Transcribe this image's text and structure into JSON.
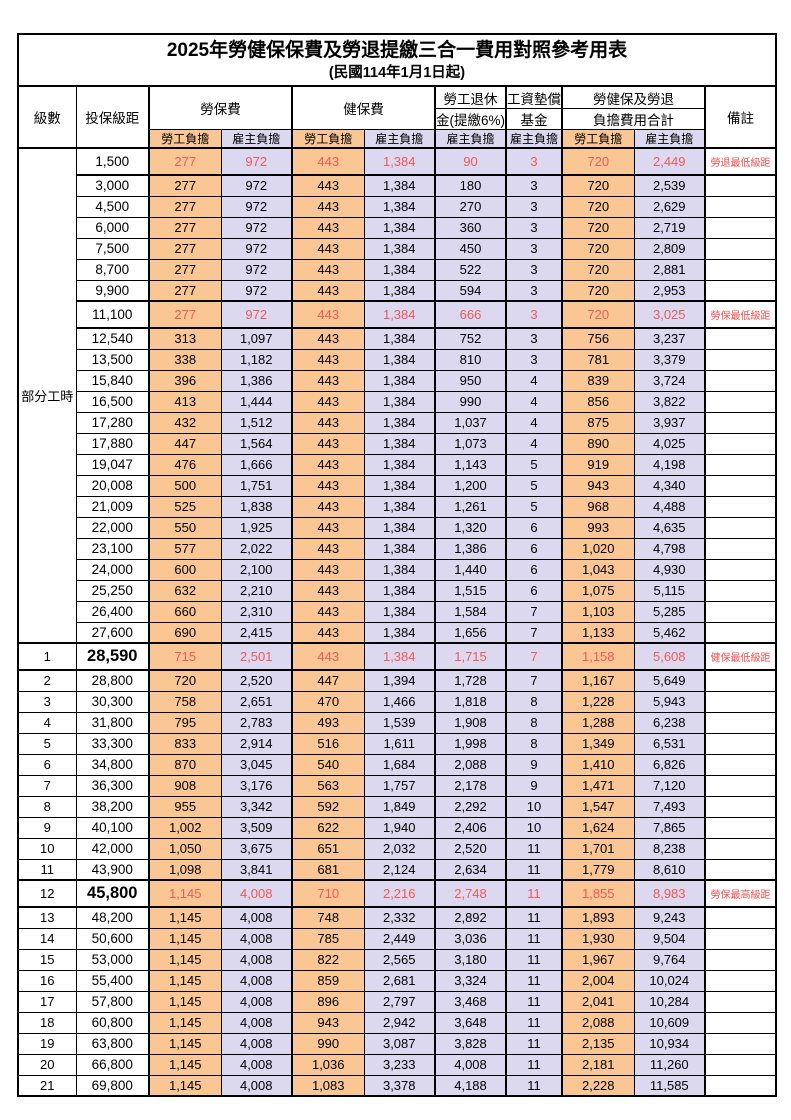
{
  "title": "2025年勞健保保費及勞退提繳三合一費用對照參考用表",
  "subtitle": "(民國114年1月1日起)",
  "header": {
    "level": "級數",
    "salary": "投保級距",
    "labor_fee": "勞保費",
    "health_fee": "健保費",
    "pension_line1": "勞工退休",
    "pension_line2": "金(提繳6%)",
    "wage_fund_line1": "工資墊償",
    "wage_fund_line2": "基金",
    "total_line1": "勞健保及勞退",
    "total_line2": "負擔費用合計",
    "note": "備註",
    "employee_share": "勞工負擔",
    "employer_share": "雇主負擔"
  },
  "part_time_label": "部分工時",
  "part_time_rowspan": 23,
  "accent_colors": {
    "employee_fill": "#F9C694",
    "employer_fill": "#DBD8F0",
    "highlight_text": "#EF5A5A"
  },
  "rows": [
    {
      "level": "",
      "salary": "1,500",
      "v": [
        "277",
        "972",
        "443",
        "1,384",
        "90",
        "3",
        "720",
        "2,449"
      ],
      "note": "勞退最低級距",
      "red": true,
      "tall": true,
      "hl": true,
      "big": false
    },
    {
      "level": "",
      "salary": "3,000",
      "v": [
        "277",
        "972",
        "443",
        "1,384",
        "180",
        "3",
        "720",
        "2,539"
      ],
      "note": ""
    },
    {
      "level": "",
      "salary": "4,500",
      "v": [
        "277",
        "972",
        "443",
        "1,384",
        "270",
        "3",
        "720",
        "2,629"
      ],
      "note": ""
    },
    {
      "level": "",
      "salary": "6,000",
      "v": [
        "277",
        "972",
        "443",
        "1,384",
        "360",
        "3",
        "720",
        "2,719"
      ],
      "note": ""
    },
    {
      "level": "",
      "salary": "7,500",
      "v": [
        "277",
        "972",
        "443",
        "1,384",
        "450",
        "3",
        "720",
        "2,809"
      ],
      "note": ""
    },
    {
      "level": "",
      "salary": "8,700",
      "v": [
        "277",
        "972",
        "443",
        "1,384",
        "522",
        "3",
        "720",
        "2,881"
      ],
      "note": ""
    },
    {
      "level": "",
      "salary": "9,900",
      "v": [
        "277",
        "972",
        "443",
        "1,384",
        "594",
        "3",
        "720",
        "2,953"
      ],
      "note": ""
    },
    {
      "level": "",
      "salary": "11,100",
      "v": [
        "277",
        "972",
        "443",
        "1,384",
        "666",
        "3",
        "720",
        "3,025"
      ],
      "note": "勞保最低級距",
      "red": true,
      "tall": true,
      "hl": true,
      "big": false
    },
    {
      "level": "",
      "salary": "12,540",
      "v": [
        "313",
        "1,097",
        "443",
        "1,384",
        "752",
        "3",
        "756",
        "3,237"
      ],
      "note": ""
    },
    {
      "level": "",
      "salary": "13,500",
      "v": [
        "338",
        "1,182",
        "443",
        "1,384",
        "810",
        "3",
        "781",
        "3,379"
      ],
      "note": ""
    },
    {
      "level": "",
      "salary": "15,840",
      "v": [
        "396",
        "1,386",
        "443",
        "1,384",
        "950",
        "4",
        "839",
        "3,724"
      ],
      "note": ""
    },
    {
      "level": "",
      "salary": "16,500",
      "v": [
        "413",
        "1,444",
        "443",
        "1,384",
        "990",
        "4",
        "856",
        "3,822"
      ],
      "note": ""
    },
    {
      "level": "",
      "salary": "17,280",
      "v": [
        "432",
        "1,512",
        "443",
        "1,384",
        "1,037",
        "4",
        "875",
        "3,937"
      ],
      "note": ""
    },
    {
      "level": "",
      "salary": "17,880",
      "v": [
        "447",
        "1,564",
        "443",
        "1,384",
        "1,073",
        "4",
        "890",
        "4,025"
      ],
      "note": ""
    },
    {
      "level": "",
      "salary": "19,047",
      "v": [
        "476",
        "1,666",
        "443",
        "1,384",
        "1,143",
        "5",
        "919",
        "4,198"
      ],
      "note": ""
    },
    {
      "level": "",
      "salary": "20,008",
      "v": [
        "500",
        "1,751",
        "443",
        "1,384",
        "1,200",
        "5",
        "943",
        "4,340"
      ],
      "note": ""
    },
    {
      "level": "",
      "salary": "21,009",
      "v": [
        "525",
        "1,838",
        "443",
        "1,384",
        "1,261",
        "5",
        "968",
        "4,488"
      ],
      "note": ""
    },
    {
      "level": "",
      "salary": "22,000",
      "v": [
        "550",
        "1,925",
        "443",
        "1,384",
        "1,320",
        "6",
        "993",
        "4,635"
      ],
      "note": ""
    },
    {
      "level": "",
      "salary": "23,100",
      "v": [
        "577",
        "2,022",
        "443",
        "1,384",
        "1,386",
        "6",
        "1,020",
        "4,798"
      ],
      "note": ""
    },
    {
      "level": "",
      "salary": "24,000",
      "v": [
        "600",
        "2,100",
        "443",
        "1,384",
        "1,440",
        "6",
        "1,043",
        "4,930"
      ],
      "note": ""
    },
    {
      "level": "",
      "salary": "25,250",
      "v": [
        "632",
        "2,210",
        "443",
        "1,384",
        "1,515",
        "6",
        "1,075",
        "5,115"
      ],
      "note": ""
    },
    {
      "level": "",
      "salary": "26,400",
      "v": [
        "660",
        "2,310",
        "443",
        "1,384",
        "1,584",
        "7",
        "1,103",
        "5,285"
      ],
      "note": ""
    },
    {
      "level": "",
      "salary": "27,600",
      "v": [
        "690",
        "2,415",
        "443",
        "1,384",
        "1,656",
        "7",
        "1,133",
        "5,462"
      ],
      "note": ""
    },
    {
      "level": "1",
      "salary": "28,590",
      "v": [
        "715",
        "2,501",
        "443",
        "1,384",
        "1,715",
        "7",
        "1,158",
        "5,608"
      ],
      "note": "健保最低級距",
      "red": true,
      "tall": true,
      "hl": true,
      "big": true
    },
    {
      "level": "2",
      "salary": "28,800",
      "v": [
        "720",
        "2,520",
        "447",
        "1,394",
        "1,728",
        "7",
        "1,167",
        "5,649"
      ],
      "note": ""
    },
    {
      "level": "3",
      "salary": "30,300",
      "v": [
        "758",
        "2,651",
        "470",
        "1,466",
        "1,818",
        "8",
        "1,228",
        "5,943"
      ],
      "note": ""
    },
    {
      "level": "4",
      "salary": "31,800",
      "v": [
        "795",
        "2,783",
        "493",
        "1,539",
        "1,908",
        "8",
        "1,288",
        "6,238"
      ],
      "note": ""
    },
    {
      "level": "5",
      "salary": "33,300",
      "v": [
        "833",
        "2,914",
        "516",
        "1,611",
        "1,998",
        "8",
        "1,349",
        "6,531"
      ],
      "note": ""
    },
    {
      "level": "6",
      "salary": "34,800",
      "v": [
        "870",
        "3,045",
        "540",
        "1,684",
        "2,088",
        "9",
        "1,410",
        "6,826"
      ],
      "note": ""
    },
    {
      "level": "7",
      "salary": "36,300",
      "v": [
        "908",
        "3,176",
        "563",
        "1,757",
        "2,178",
        "9",
        "1,471",
        "7,120"
      ],
      "note": ""
    },
    {
      "level": "8",
      "salary": "38,200",
      "v": [
        "955",
        "3,342",
        "592",
        "1,849",
        "2,292",
        "10",
        "1,547",
        "7,493"
      ],
      "note": ""
    },
    {
      "level": "9",
      "salary": "40,100",
      "v": [
        "1,002",
        "3,509",
        "622",
        "1,940",
        "2,406",
        "10",
        "1,624",
        "7,865"
      ],
      "note": ""
    },
    {
      "level": "10",
      "salary": "42,000",
      "v": [
        "1,050",
        "3,675",
        "651",
        "2,032",
        "2,520",
        "11",
        "1,701",
        "8,238"
      ],
      "note": ""
    },
    {
      "level": "11",
      "salary": "43,900",
      "v": [
        "1,098",
        "3,841",
        "681",
        "2,124",
        "2,634",
        "11",
        "1,779",
        "8,610"
      ],
      "note": ""
    },
    {
      "level": "12",
      "salary": "45,800",
      "v": [
        "1,145",
        "4,008",
        "710",
        "2,216",
        "2,748",
        "11",
        "1,855",
        "8,983"
      ],
      "note": "勞保最高級距",
      "red": true,
      "tall": true,
      "hl": true,
      "big": true
    },
    {
      "level": "13",
      "salary": "48,200",
      "v": [
        "1,145",
        "4,008",
        "748",
        "2,332",
        "2,892",
        "11",
        "1,893",
        "9,243"
      ],
      "note": ""
    },
    {
      "level": "14",
      "salary": "50,600",
      "v": [
        "1,145",
        "4,008",
        "785",
        "2,449",
        "3,036",
        "11",
        "1,930",
        "9,504"
      ],
      "note": ""
    },
    {
      "level": "15",
      "salary": "53,000",
      "v": [
        "1,145",
        "4,008",
        "822",
        "2,565",
        "3,180",
        "11",
        "1,967",
        "9,764"
      ],
      "note": ""
    },
    {
      "level": "16",
      "salary": "55,400",
      "v": [
        "1,145",
        "4,008",
        "859",
        "2,681",
        "3,324",
        "11",
        "2,004",
        "10,024"
      ],
      "note": ""
    },
    {
      "level": "17",
      "salary": "57,800",
      "v": [
        "1,145",
        "4,008",
        "896",
        "2,797",
        "3,468",
        "11",
        "2,041",
        "10,284"
      ],
      "note": ""
    },
    {
      "level": "18",
      "salary": "60,800",
      "v": [
        "1,145",
        "4,008",
        "943",
        "2,942",
        "3,648",
        "11",
        "2,088",
        "10,609"
      ],
      "note": ""
    },
    {
      "level": "19",
      "salary": "63,800",
      "v": [
        "1,145",
        "4,008",
        "990",
        "3,087",
        "3,828",
        "11",
        "2,135",
        "10,934"
      ],
      "note": ""
    },
    {
      "level": "20",
      "salary": "66,800",
      "v": [
        "1,145",
        "4,008",
        "1,036",
        "3,233",
        "4,008",
        "11",
        "2,181",
        "11,260"
      ],
      "note": ""
    },
    {
      "level": "21",
      "salary": "69,800",
      "v": [
        "1,145",
        "4,008",
        "1,083",
        "3,378",
        "4,188",
        "11",
        "2,228",
        "11,585"
      ],
      "note": ""
    }
  ]
}
